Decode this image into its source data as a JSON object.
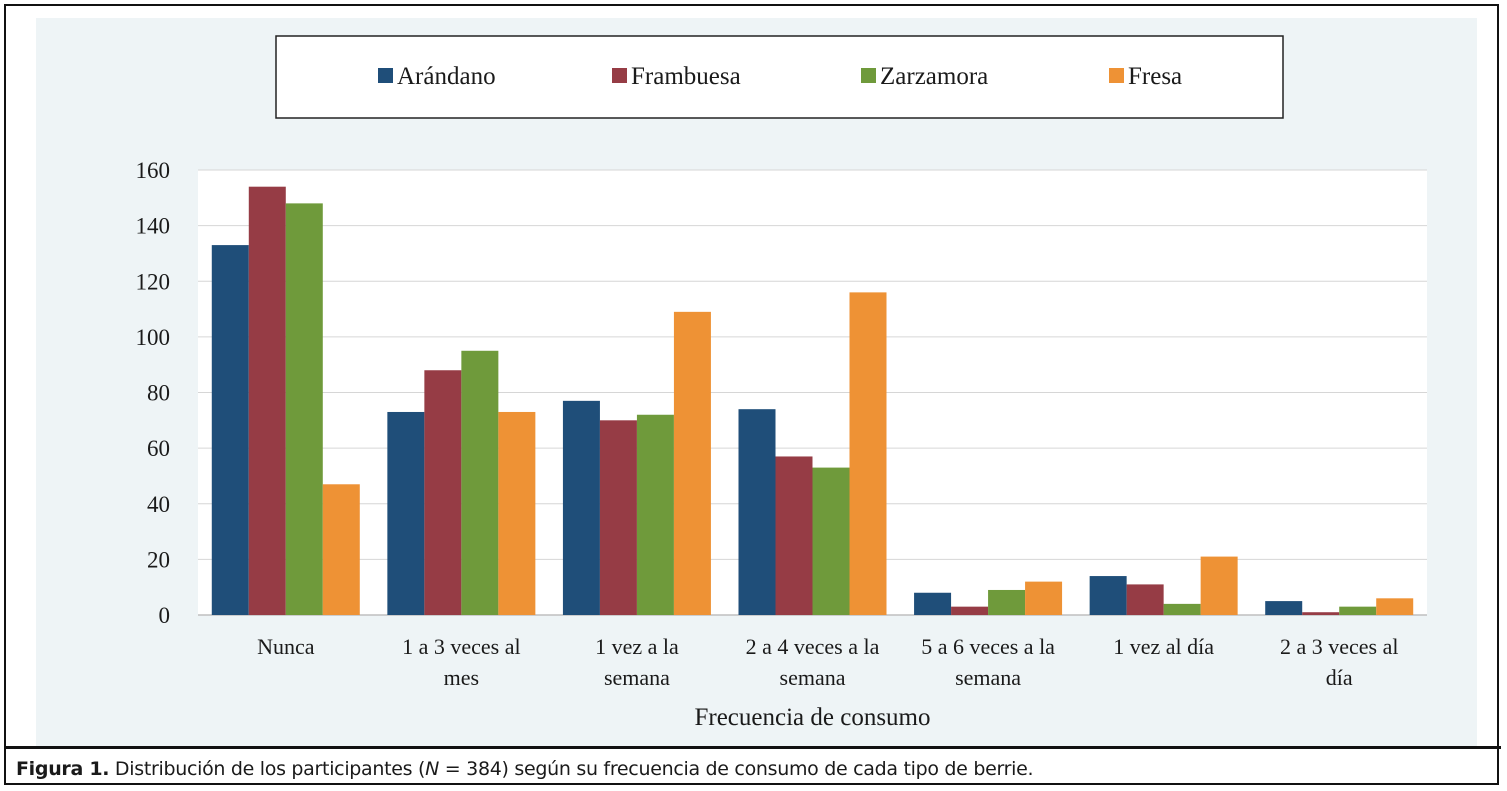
{
  "figure": {
    "caption_lead": "Figura 1.",
    "caption_pre": " Distribución de los participantes (",
    "caption_var": "N",
    "caption_post": " = 384) según su frecuencia de consumo de cada tipo de berrie."
  },
  "chart_data": {
    "type": "bar",
    "title": "",
    "xlabel": "Frecuencia de consumo",
    "ylabel": "",
    "ylim": [
      0,
      160
    ],
    "yticks": [
      0,
      20,
      40,
      60,
      80,
      100,
      120,
      140,
      160
    ],
    "grid": true,
    "legend_position": "top",
    "categories": [
      [
        "Nunca"
      ],
      [
        "1 a 3 veces al",
        "mes"
      ],
      [
        "1 vez a la",
        "semana"
      ],
      [
        "2 a 4 veces a la",
        "semana"
      ],
      [
        "5 a 6 veces a la",
        "semana"
      ],
      [
        "1 vez al día"
      ],
      [
        "2 a 3 veces al",
        "día"
      ]
    ],
    "series": [
      {
        "name": "Arándano",
        "color": "#1f4e79",
        "values": [
          133,
          73,
          77,
          74,
          8,
          14,
          5
        ]
      },
      {
        "name": "Frambuesa",
        "color": "#963c45",
        "values": [
          154,
          88,
          70,
          57,
          3,
          11,
          1
        ]
      },
      {
        "name": "Zarzamora",
        "color": "#6f9a3b",
        "values": [
          148,
          95,
          72,
          53,
          9,
          4,
          3
        ]
      },
      {
        "name": "Fresa",
        "color": "#ee9235",
        "values": [
          47,
          73,
          109,
          116,
          12,
          21,
          6
        ]
      }
    ]
  }
}
